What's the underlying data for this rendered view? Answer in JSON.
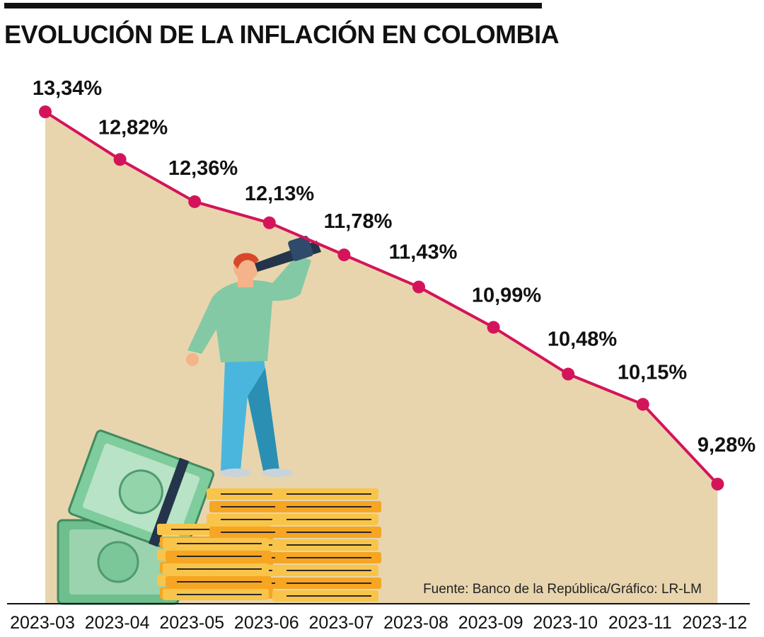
{
  "title": "EVOLUCIÓN DE LA INFLACIÓN EN COLOMBIA",
  "source": "Fuente: Banco de la República/Gráfico: LR-LM",
  "colors": {
    "line": "#d4145a",
    "area": "#e8d5ae",
    "axis": "#111111"
  },
  "chart_data": {
    "type": "area",
    "title": "EVOLUCIÓN DE LA INFLACIÓN EN COLOMBIA",
    "xlabel": "",
    "ylabel": "",
    "categories": [
      "2023-03",
      "2023-04",
      "2023-05",
      "2023-06",
      "2023-07",
      "2023-08",
      "2023-09",
      "2023-10",
      "2023-11",
      "2023-12"
    ],
    "values": [
      13.34,
      12.82,
      12.36,
      12.13,
      11.78,
      11.43,
      10.99,
      10.48,
      10.15,
      9.28
    ],
    "data_labels": [
      "13,34%",
      "12,82%",
      "12,36%",
      "12,13%",
      "11,78%",
      "11,43%",
      "10,99%",
      "10,48%",
      "10,15%",
      "9,28%"
    ],
    "unit": "%",
    "grid": false,
    "legend": "none"
  }
}
